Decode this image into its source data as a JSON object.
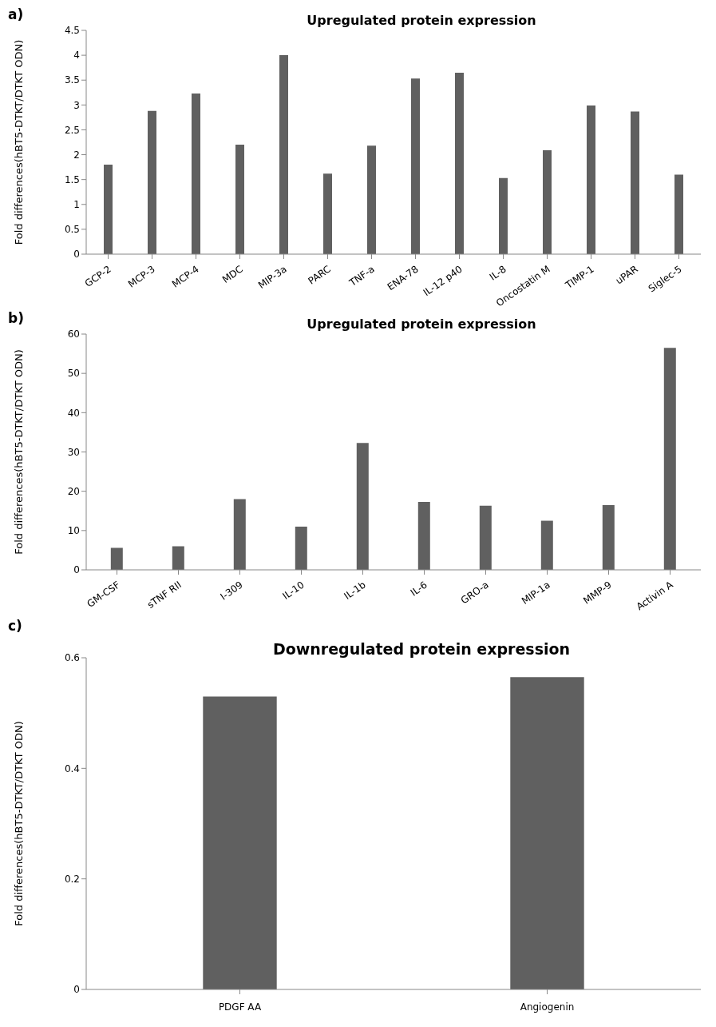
{
  "chart_data": [
    {
      "type": "bar",
      "title": "Upregulated protein expression",
      "ylabel": "Fold differences(hBT5-DTKT/DTKT ODN)",
      "annotations": [
        "a)"
      ],
      "categories": [
        "GCP-2",
        "MCP-3",
        "MCP-4",
        "MDC",
        "MIP-3a",
        "PARC",
        "TNF-a",
        "ENA-78",
        "IL-12 p40",
        "IL-8",
        "Oncostatin M",
        "TIMP-1",
        "uPAR",
        "Siglec-5"
      ],
      "values": [
        1.8,
        2.88,
        3.23,
        2.2,
        4.0,
        1.62,
        2.18,
        3.53,
        3.65,
        1.53,
        2.09,
        2.99,
        2.87,
        1.6
      ],
      "color": "#606060",
      "ylim": [
        0,
        4.5
      ],
      "yticks": [
        0,
        0.5,
        1,
        1.5,
        2,
        2.5,
        3,
        3.5,
        4,
        4.5
      ],
      "grid": false,
      "legend": false
    },
    {
      "type": "bar",
      "title": "Upregulated protein expression",
      "ylabel": "Fold differences(hBT5-DTKT/DTKT ODN)",
      "annotations": [
        "b)"
      ],
      "categories": [
        "GM-CSF",
        "sTNF RII",
        "I-309",
        "IL-10",
        "IL-1b",
        "IL-6",
        "GRO-a",
        "MIP-1a",
        "MMP-9",
        "Activin A"
      ],
      "values": [
        5.6,
        6,
        18,
        11,
        32.3,
        17.3,
        16.3,
        12.5,
        16.5,
        56.5
      ],
      "color": "#606060",
      "ylim": [
        0,
        60
      ],
      "yticks": [
        0,
        10,
        20,
        30,
        40,
        50,
        60
      ],
      "grid": false,
      "legend": false
    },
    {
      "type": "bar",
      "title": "Downregulated protein expression",
      "ylabel": "Fold differences(hBT5-DTKT/DTKT ODN)",
      "annotations": [
        "c)"
      ],
      "categories": [
        "PDGF AA",
        "Angiogenin"
      ],
      "values": [
        0.53,
        0.565
      ],
      "color": "#606060",
      "ylim": [
        0,
        0.6
      ],
      "yticks": [
        0,
        0.2,
        0.4,
        0.6
      ],
      "grid": false,
      "legend": false
    }
  ]
}
